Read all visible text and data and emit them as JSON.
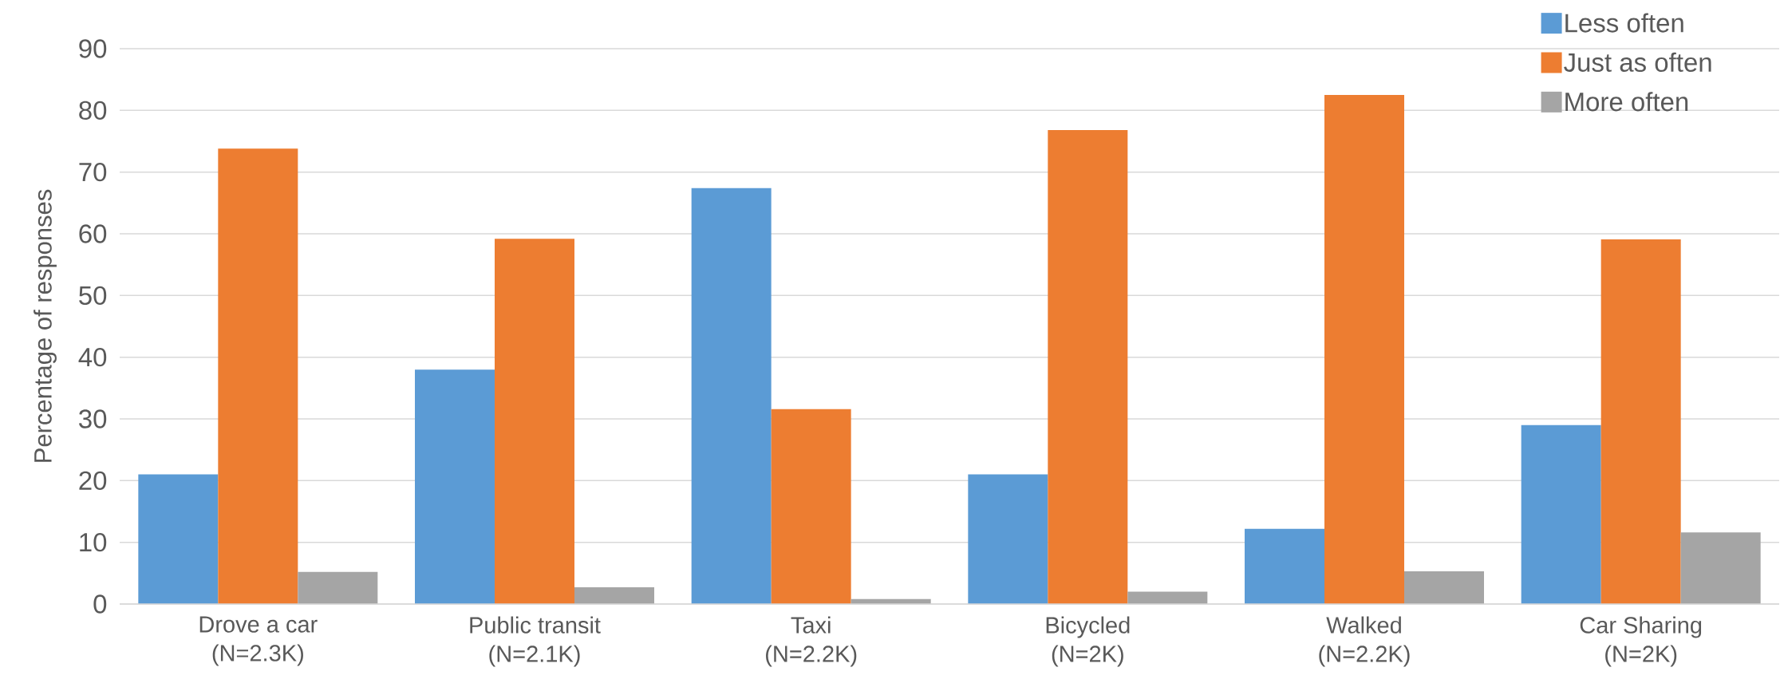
{
  "chart_data": {
    "type": "bar",
    "ylabel": "Percentage of responses",
    "categories": [
      "Drove a car\n(N=2.3K)",
      "Public transit\n(N=2.1K)",
      "Taxi\n(N=2.2K)",
      "Bicycled\n(N=2K)",
      "Walked\n(N=2.2K)",
      "Car Sharing\n(N=2K)"
    ],
    "series": [
      {
        "name": "Less often",
        "color": "#5b9bd5",
        "values": [
          21,
          38,
          67.4,
          21,
          12.2,
          29
        ]
      },
      {
        "name": "Just as often",
        "color": "#ed7d31",
        "values": [
          73.8,
          59.2,
          31.6,
          76.8,
          82.5,
          59.1
        ]
      },
      {
        "name": "More often",
        "color": "#a5a5a5",
        "values": [
          5.2,
          2.7,
          0.8,
          2,
          5.3,
          11.6
        ]
      }
    ],
    "ylim": [
      0,
      90
    ],
    "yticks": [
      0,
      10,
      20,
      30,
      40,
      50,
      60,
      70,
      80,
      90
    ],
    "grid": "y",
    "legend": "top right"
  }
}
